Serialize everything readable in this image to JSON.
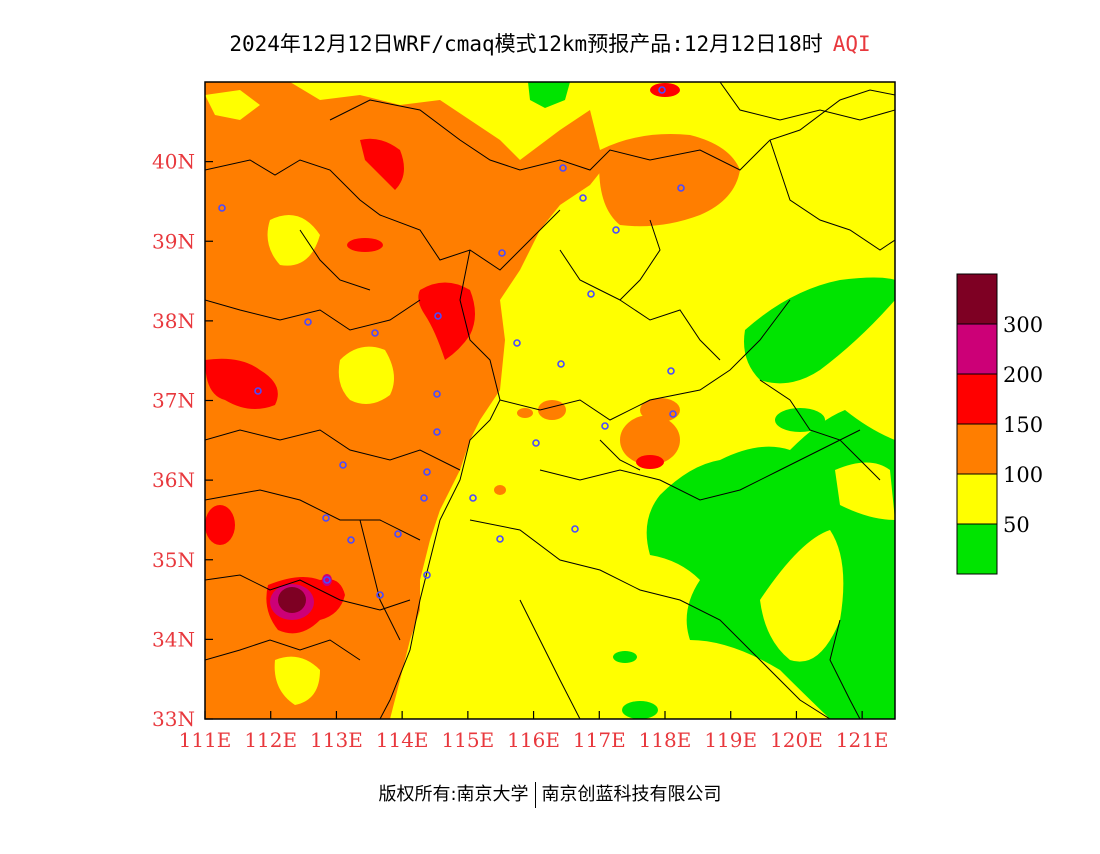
{
  "title": {
    "main": "2024年12月12日WRF/cmaq模式12km预报产品:12月12日18时",
    "variable": "AQI"
  },
  "map": {
    "lon_range": [
      111,
      121.5
    ],
    "lat_range": [
      33,
      41
    ],
    "lon_ticks": [
      "111E",
      "112E",
      "113E",
      "114E",
      "115E",
      "116E",
      "117E",
      "118E",
      "119E",
      "120E",
      "121E"
    ],
    "lat_ticks": [
      "33N",
      "34N",
      "35N",
      "36N",
      "37N",
      "38N",
      "39N",
      "40N"
    ],
    "background_category": "50-100",
    "colors": {
      "green": "#00e400",
      "yellow": "#ffff00",
      "orange": "#ff7e00",
      "red": "#ff0000",
      "purple": "#cc0077",
      "maroon": "#7e0023",
      "station": "#4a4aff",
      "boundary": "#000000"
    },
    "stations_shown": true
  },
  "legend": {
    "levels": [
      {
        "color": "#7e0023",
        "label": ""
      },
      {
        "color": "#cc0077",
        "label": "300"
      },
      {
        "color": "#ff0000",
        "label": "200"
      },
      {
        "color": "#ff7e00",
        "label": "150"
      },
      {
        "color": "#ffff00",
        "label": "100"
      },
      {
        "color": "#00e400",
        "label": "50"
      }
    ]
  },
  "footer": {
    "copyright": "版权所有:南京大学",
    "company": "南京创蓝科技有限公司"
  }
}
